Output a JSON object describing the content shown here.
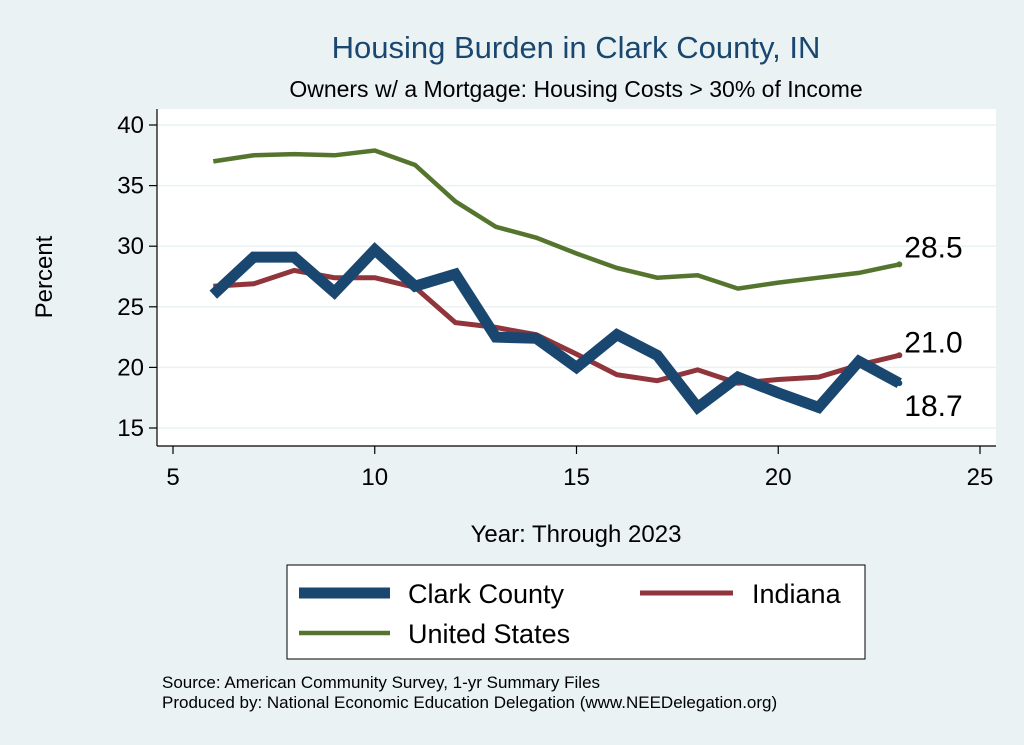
{
  "chart_data": {
    "type": "line",
    "title": "Housing Burden in Clark County, IN",
    "subtitle": "Owners w/ a Mortgage: Housing Costs > 30% of Income",
    "xlabel": "Year: Through 2023",
    "ylabel": "Percent",
    "xlim": [
      5,
      25
    ],
    "ylim": [
      15,
      40
    ],
    "xticks": [
      5,
      10,
      15,
      20,
      25
    ],
    "yticks": [
      15,
      20,
      25,
      30,
      35,
      40
    ],
    "grid": true,
    "legend_position": "bottom",
    "x": [
      6,
      7,
      8,
      9,
      10,
      11,
      12,
      13,
      14,
      15,
      16,
      17,
      18,
      19,
      20,
      21,
      22,
      23
    ],
    "series": [
      {
        "name": "Clark County",
        "color": "#1a476f",
        "values": [
          26.0,
          29.1,
          29.1,
          26.2,
          29.7,
          26.7,
          27.7,
          22.5,
          22.4,
          20.0,
          22.7,
          21.0,
          16.7,
          19.2,
          17.9,
          16.7,
          20.5,
          18.7
        ],
        "end_label": "18.7"
      },
      {
        "name": "Indiana",
        "color": "#90353b",
        "values": [
          26.7,
          26.9,
          28.0,
          27.4,
          27.4,
          26.6,
          23.7,
          23.3,
          22.7,
          21.1,
          19.4,
          18.9,
          19.8,
          18.7,
          19.0,
          19.2,
          20.2,
          21.0
        ],
        "end_label": "21.0"
      },
      {
        "name": "United States",
        "color": "#55752f",
        "values": [
          37.0,
          37.5,
          37.6,
          37.5,
          37.9,
          36.7,
          33.7,
          31.6,
          30.7,
          29.4,
          28.2,
          27.4,
          27.6,
          26.5,
          27.0,
          27.4,
          27.8,
          28.5
        ],
        "end_label": "28.5"
      }
    ]
  },
  "notes": {
    "source": "Source: American Community Survey, 1-yr Summary Files",
    "produced_by": "Produced by: National Economic Education Delegation (www.NEEDelegation.org)"
  }
}
